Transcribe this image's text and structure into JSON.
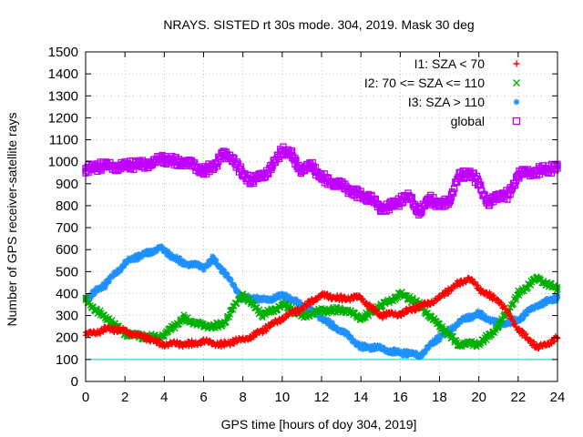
{
  "chart_data": {
    "type": "scatter",
    "title": "NRAYS. SISTED rt 30s mode. 304, 2019. Mask 30 deg",
    "xlabel": "GPS time [hours of doy 304, 2019]",
    "ylabel": "Number of GPS receiver-satellite rays",
    "xlim": [
      0,
      24
    ],
    "ylim": [
      0,
      1500
    ],
    "xticks": [
      "0",
      "2",
      "4",
      "6",
      "8",
      "10",
      "12",
      "14",
      "16",
      "18",
      "20",
      "22",
      "24"
    ],
    "yticks": [
      "0",
      "100",
      "200",
      "300",
      "400",
      "500",
      "600",
      "700",
      "800",
      "900",
      "1000",
      "1100",
      "1200",
      "1300",
      "1400",
      "1500"
    ],
    "grid": true,
    "legend_position": "top-right",
    "threshold_line": {
      "y": 100,
      "color": "#00c8c8"
    },
    "series": [
      {
        "name": "I1: SZA < 70",
        "marker": "+",
        "color": "#ff0000",
        "x": [
          0,
          1,
          2,
          3,
          4,
          5,
          6,
          7,
          8,
          9,
          10,
          11,
          11.5,
          12,
          13,
          14,
          15,
          16,
          17,
          18,
          19,
          19.5,
          20,
          21,
          22,
          23,
          24
        ],
        "y": [
          210,
          240,
          230,
          200,
          170,
          170,
          180,
          170,
          190,
          230,
          290,
          330,
          370,
          390,
          380,
          380,
          300,
          310,
          340,
          380,
          450,
          470,
          420,
          370,
          240,
          150,
          200
        ]
      },
      {
        "name": "I2: 70 <= SZA <= 110",
        "marker": "x",
        "color": "#00b000",
        "x": [
          0,
          1,
          2,
          3,
          4,
          5,
          6,
          7,
          8,
          9,
          10,
          11,
          12,
          13,
          14,
          15,
          16,
          17,
          18,
          19,
          20,
          21,
          22,
          23,
          24
        ],
        "y": [
          370,
          290,
          220,
          200,
          210,
          290,
          250,
          260,
          400,
          300,
          350,
          300,
          320,
          330,
          290,
          340,
          400,
          350,
          250,
          170,
          170,
          250,
          400,
          470,
          420
        ]
      },
      {
        "name": "I3: SZA > 110",
        "marker": "*",
        "color": "#1e90ff",
        "x": [
          0,
          1,
          2,
          3,
          3.8,
          4,
          5,
          6,
          6.5,
          7,
          8,
          9,
          10,
          11,
          12,
          13,
          14,
          15,
          16,
          17,
          18,
          19,
          20,
          21,
          22,
          23,
          24
        ],
        "y": [
          380,
          440,
          540,
          580,
          610,
          590,
          540,
          520,
          560,
          500,
          380,
          370,
          390,
          350,
          290,
          230,
          160,
          150,
          130,
          120,
          200,
          270,
          310,
          260,
          280,
          350,
          380
        ]
      },
      {
        "name": "global",
        "marker": "square",
        "color": "#c000ff",
        "x": [
          0,
          1,
          2,
          3,
          4,
          5,
          6,
          6.5,
          7,
          7.5,
          8,
          8.5,
          9,
          9.5,
          10,
          10.5,
          11,
          11.5,
          12,
          13,
          14,
          14.5,
          15,
          15.5,
          16,
          16.5,
          17,
          17.5,
          18,
          18.5,
          19,
          19.5,
          20,
          20.5,
          21,
          21.5,
          22,
          23,
          24
        ],
        "y": [
          970,
          980,
          980,
          990,
          1010,
          1000,
          960,
          980,
          1030,
          1020,
          940,
          910,
          940,
          980,
          1050,
          1030,
          960,
          980,
          930,
          890,
          850,
          830,
          790,
          800,
          820,
          840,
          770,
          830,
          800,
          830,
          930,
          950,
          910,
          800,
          850,
          850,
          940,
          960,
          970
        ]
      }
    ]
  }
}
